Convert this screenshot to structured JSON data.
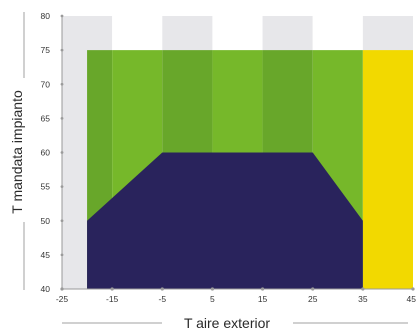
{
  "chart_data": {
    "type": "area",
    "xlabel": "T aire exterior",
    "ylabel": "T mandata impianto",
    "xlim": [
      -25,
      45
    ],
    "ylim": [
      40,
      80
    ],
    "x_ticks": [
      -25,
      -15,
      -5,
      5,
      15,
      25,
      35,
      45
    ],
    "y_ticks": [
      40,
      45,
      50,
      55,
      60,
      65,
      70,
      75,
      80
    ],
    "grid": "alternating vertical bands",
    "regions": [
      {
        "name": "",
        "color": "#76b82a",
        "kind": "band",
        "x": [
          -20,
          35
        ],
        "y": [
          40,
          75
        ]
      },
      {
        "name": "",
        "color": "#f2d900",
        "kind": "band",
        "x": [
          35,
          45
        ],
        "y": [
          40,
          75
        ]
      },
      {
        "name": "",
        "color": "#29235c",
        "kind": "polygon",
        "points": [
          [
            -20,
            40
          ],
          [
            -20,
            50
          ],
          [
            -5,
            60
          ],
          [
            25,
            60
          ],
          [
            35,
            50
          ],
          [
            35,
            40
          ]
        ]
      }
    ],
    "colors": {
      "band_light": "#ffffff",
      "band_dark": "#e7e7ea",
      "green": "#76b82a",
      "green_dark": "#68a72a",
      "yellow": "#f2d900",
      "navy": "#29235c",
      "axis": "#9a9a9a"
    }
  }
}
